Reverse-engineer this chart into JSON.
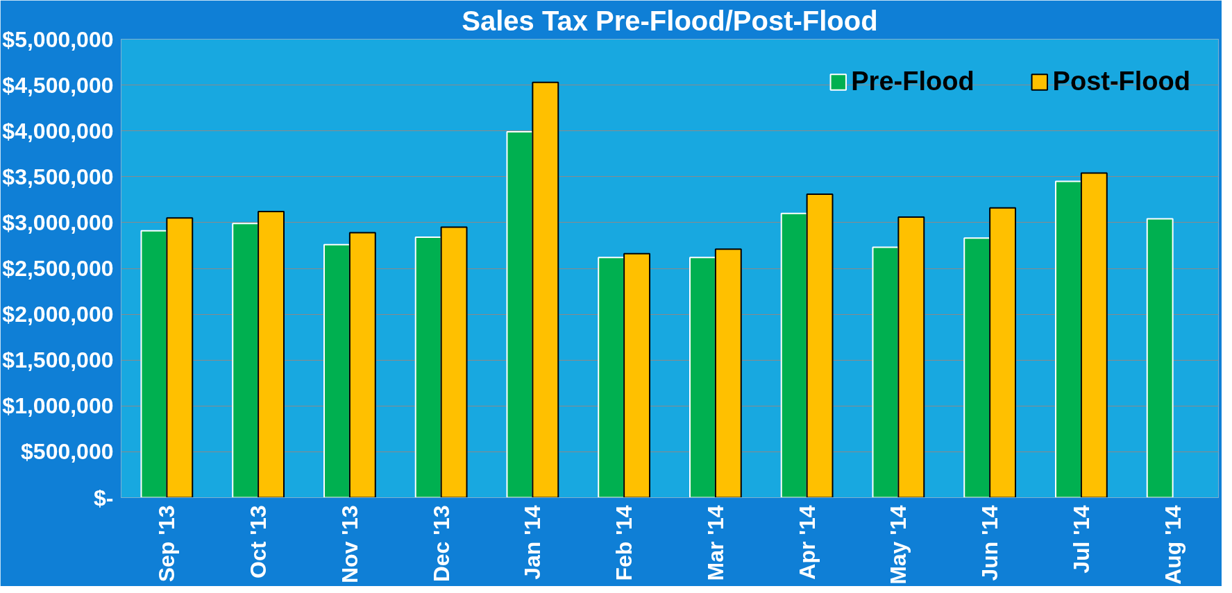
{
  "chart_data": {
    "type": "bar",
    "title": "Sales Tax Pre-Flood/Post-Flood",
    "categories": [
      "Sep '13",
      "Oct '13",
      "Nov '13",
      "Dec '13",
      "Jan '14",
      "Feb '14",
      "Mar '14",
      "Apr '14",
      "May '14",
      "Jun '14",
      "Jul '14",
      "Aug '14"
    ],
    "series": [
      {
        "name": "Pre-Flood",
        "color": "#00b050",
        "values": [
          2910000,
          2990000,
          2760000,
          2840000,
          3990000,
          2620000,
          2620000,
          3100000,
          2730000,
          2830000,
          3450000,
          3040000
        ]
      },
      {
        "name": "Post-Flood",
        "color": "#ffc000",
        "values": [
          3050000,
          3120000,
          2890000,
          2950000,
          4530000,
          2660000,
          2710000,
          3310000,
          3060000,
          3160000,
          3540000,
          null
        ]
      }
    ],
    "ylim": [
      0,
      5000000
    ],
    "yticks": [
      {
        "value": 0,
        "label": "$-"
      },
      {
        "value": 500000,
        "label": "$500,000"
      },
      {
        "value": 1000000,
        "label": "$1,000,000"
      },
      {
        "value": 1500000,
        "label": "$1,500,000"
      },
      {
        "value": 2000000,
        "label": "$2,000,000"
      },
      {
        "value": 2500000,
        "label": "$2,500,000"
      },
      {
        "value": 3000000,
        "label": "$3,000,000"
      },
      {
        "value": 3500000,
        "label": "$3,500,000"
      },
      {
        "value": 4000000,
        "label": "$4,000,000"
      },
      {
        "value": 4500000,
        "label": "$4,500,000"
      },
      {
        "value": 5000000,
        "label": "$5,000,000"
      }
    ],
    "grid": "y",
    "legend": "top right"
  }
}
